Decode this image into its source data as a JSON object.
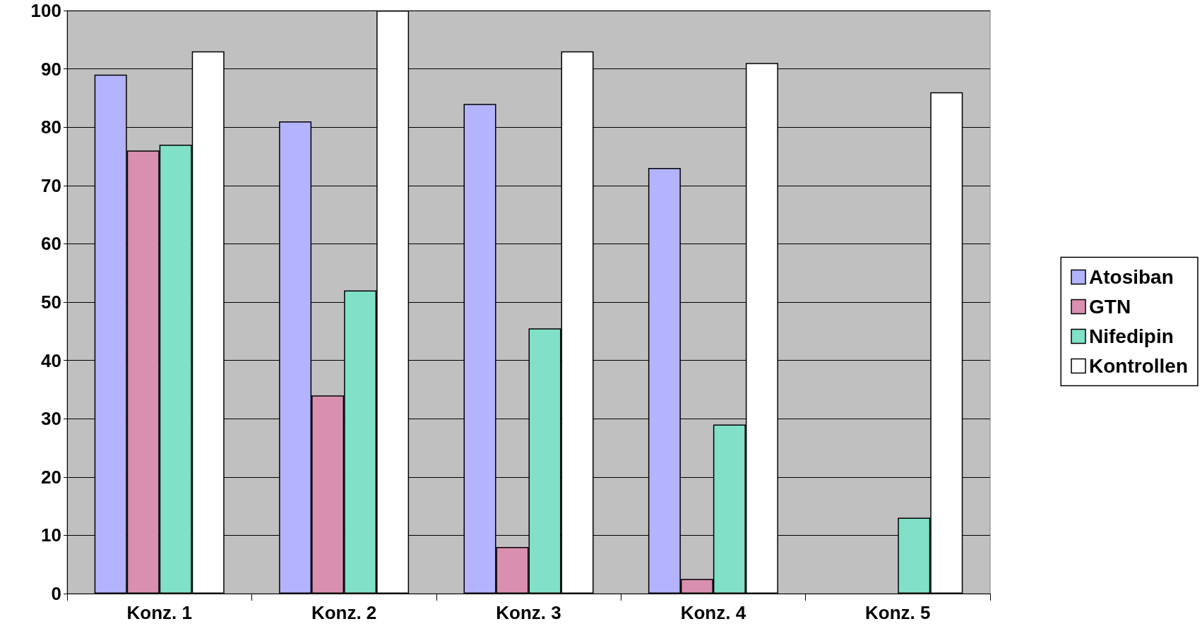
{
  "chart_data": {
    "type": "bar",
    "categories": [
      "Konz. 1",
      "Konz. 2",
      "Konz. 3",
      "Konz. 4",
      "Konz. 5"
    ],
    "series": [
      {
        "name": "Atosiban",
        "color": "#b3b3ff",
        "values": [
          89,
          81,
          84,
          73,
          null
        ]
      },
      {
        "name": "GTN",
        "color": "#d98fb0",
        "values": [
          76,
          34,
          8,
          2.5,
          null
        ]
      },
      {
        "name": "Nifedipin",
        "color": "#80e0c8",
        "values": [
          77,
          52,
          45.5,
          29,
          13
        ]
      },
      {
        "name": "Kontrollen",
        "color": "#ffffff",
        "values": [
          93,
          100,
          93,
          91,
          86
        ]
      }
    ],
    "ylim": [
      0,
      100
    ],
    "yticks": [
      0,
      10,
      20,
      30,
      40,
      50,
      60,
      70,
      80,
      90,
      100
    ],
    "grid": "y",
    "legend": "right"
  }
}
